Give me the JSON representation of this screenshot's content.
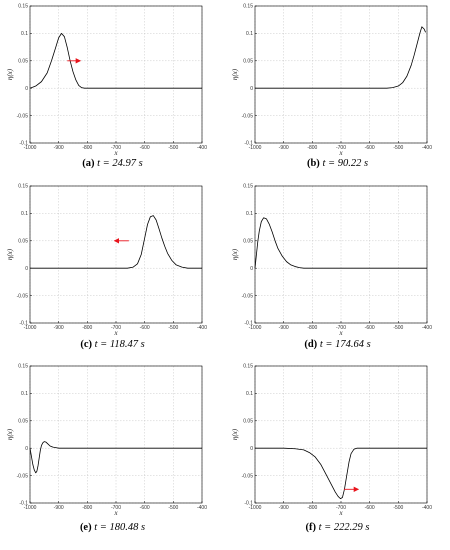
{
  "chart_data": [
    {
      "type": "line",
      "panel": "(a)",
      "time_label": "t = 24.97 s",
      "xlabel": "x",
      "ylabel": "η(x)",
      "xlim": [
        -1000,
        -400
      ],
      "ylim": [
        -0.1,
        0.15
      ],
      "x_ticks": [
        "-1000",
        "-900",
        "-800",
        "-700",
        "-600",
        "-500",
        "-400"
      ],
      "y_ticks": [
        "-0.1",
        "-0.05",
        "0",
        "0.05",
        "0.1",
        "0.15"
      ],
      "grid": true,
      "series": [
        {
          "x": [
            -1000,
            -980,
            -960,
            -940,
            -925,
            -910,
            -900,
            -890,
            -880,
            -870,
            -860,
            -850,
            -840,
            -830,
            -820,
            -810,
            -800,
            -700,
            -600,
            -500,
            -400
          ],
          "y": [
            0,
            0.004,
            0.012,
            0.028,
            0.05,
            0.075,
            0.092,
            0.1,
            0.094,
            0.074,
            0.05,
            0.03,
            0.015,
            0.005,
            0.001,
            0,
            0,
            0,
            0,
            0,
            0
          ]
        }
      ],
      "arrow": {
        "from": [
          -870,
          0.05
        ],
        "to": [
          -825,
          0.05
        ],
        "color": "#e8141c"
      }
    },
    {
      "type": "line",
      "panel": "(b)",
      "time_label": "t = 90.22 s",
      "xlabel": "x",
      "ylabel": "η(x)",
      "xlim": [
        -1000,
        -400
      ],
      "ylim": [
        -0.1,
        0.15
      ],
      "x_ticks": [
        "-1000",
        "-900",
        "-800",
        "-700",
        "-600",
        "-500",
        "-400"
      ],
      "y_ticks": [
        "-0.1",
        "-0.05",
        "0",
        "0.05",
        "0.1",
        "0.15"
      ],
      "grid": true,
      "series": [
        {
          "x": [
            -1000,
            -900,
            -800,
            -700,
            -600,
            -540,
            -520,
            -500,
            -485,
            -470,
            -455,
            -445,
            -435,
            -425,
            -418,
            -410,
            -405
          ],
          "y": [
            0,
            0,
            0,
            0,
            0,
            0,
            0.001,
            0.004,
            0.01,
            0.022,
            0.042,
            0.06,
            0.08,
            0.1,
            0.112,
            0.108,
            0.102
          ]
        }
      ]
    },
    {
      "type": "line",
      "panel": "(c)",
      "time_label": "t = 118.47 s",
      "xlabel": "x",
      "ylabel": "η(x)",
      "xlim": [
        -1000,
        -400
      ],
      "ylim": [
        -0.1,
        0.15
      ],
      "x_ticks": [
        "-1000",
        "-900",
        "-800",
        "-700",
        "-600",
        "-500",
        "-400"
      ],
      "y_ticks": [
        "-0.1",
        "-0.05",
        "0",
        "0.05",
        "0.1",
        "0.15"
      ],
      "grid": true,
      "series": [
        {
          "x": [
            -1000,
            -900,
            -800,
            -700,
            -660,
            -640,
            -625,
            -612,
            -600,
            -590,
            -580,
            -570,
            -560,
            -550,
            -540,
            -530,
            -520,
            -505,
            -490,
            -470,
            -450,
            -400
          ],
          "y": [
            0,
            0,
            0,
            0,
            0,
            0.002,
            0.008,
            0.025,
            0.055,
            0.08,
            0.094,
            0.096,
            0.088,
            0.072,
            0.055,
            0.04,
            0.027,
            0.014,
            0.006,
            0.002,
            0,
            0
          ]
        }
      ],
      "arrow": {
        "from": [
          -655,
          0.05
        ],
        "to": [
          -705,
          0.05
        ],
        "color": "#e8141c"
      }
    },
    {
      "type": "line",
      "panel": "(d)",
      "time_label": "t = 174.64 s",
      "xlabel": "x",
      "ylabel": "η(x)",
      "xlim": [
        -1000,
        -400
      ],
      "ylim": [
        -0.1,
        0.15
      ],
      "x_ticks": [
        "-1000",
        "-900",
        "-800",
        "-700",
        "-600",
        "-500",
        "-400"
      ],
      "y_ticks": [
        "-0.1",
        "-0.05",
        "0",
        "0.05",
        "0.1",
        "0.15"
      ],
      "grid": true,
      "series": [
        {
          "x": [
            -1000,
            -995,
            -990,
            -985,
            -978,
            -970,
            -960,
            -950,
            -940,
            -930,
            -920,
            -905,
            -890,
            -875,
            -860,
            -845,
            -830,
            -800,
            -700,
            -600,
            -500,
            -400
          ],
          "y": [
            0,
            0.025,
            0.05,
            0.068,
            0.085,
            0.092,
            0.09,
            0.08,
            0.066,
            0.05,
            0.036,
            0.022,
            0.012,
            0.006,
            0.003,
            0.001,
            0,
            0,
            0,
            0,
            0,
            0
          ]
        }
      ]
    },
    {
      "type": "line",
      "panel": "(e)",
      "time_label": "t = 180.48 s",
      "xlabel": "x",
      "ylabel": "η(x)",
      "xlim": [
        -1000,
        -400
      ],
      "ylim": [
        -0.1,
        0.15
      ],
      "x_ticks": [
        "-1000",
        "-900",
        "-800",
        "-700",
        "-600",
        "-500",
        "-400"
      ],
      "y_ticks": [
        "-0.1",
        "-0.05",
        "0",
        "0.05",
        "0.1",
        "0.15"
      ],
      "grid": true,
      "series": [
        {
          "x": [
            -1000,
            -995,
            -990,
            -985,
            -980,
            -976,
            -972,
            -968,
            -964,
            -960,
            -955,
            -950,
            -944,
            -938,
            -930,
            -920,
            -910,
            -900,
            -800,
            -700,
            -600,
            -500,
            -400
          ],
          "y": [
            0,
            -0.015,
            -0.03,
            -0.04,
            -0.045,
            -0.042,
            -0.032,
            -0.018,
            -0.004,
            0.005,
            0.01,
            0.012,
            0.011,
            0.008,
            0.004,
            0.002,
            0.001,
            0,
            0,
            0,
            0,
            0,
            0
          ]
        }
      ]
    },
    {
      "type": "line",
      "panel": "(f)",
      "time_label": "t = 222.29 s",
      "xlabel": "x",
      "ylabel": "η(x)",
      "xlim": [
        -1000,
        -400
      ],
      "ylim": [
        -0.1,
        0.15
      ],
      "x_ticks": [
        "-1000",
        "-900",
        "-800",
        "-700",
        "-600",
        "-500",
        "-400"
      ],
      "y_ticks": [
        "-0.1",
        "-0.05",
        "0",
        "0.05",
        "0.1",
        "0.15"
      ],
      "grid": true,
      "series": [
        {
          "x": [
            -1000,
            -900,
            -860,
            -830,
            -810,
            -790,
            -770,
            -750,
            -735,
            -720,
            -710,
            -702,
            -695,
            -688,
            -680,
            -672,
            -665,
            -655,
            -645,
            -600,
            -500,
            -400
          ],
          "y": [
            0,
            0,
            -0.001,
            -0.003,
            -0.008,
            -0.016,
            -0.03,
            -0.05,
            -0.065,
            -0.08,
            -0.088,
            -0.092,
            -0.09,
            -0.075,
            -0.05,
            -0.025,
            -0.01,
            -0.002,
            0,
            0,
            0,
            0
          ]
        }
      ],
      "arrow": {
        "from": [
          -690,
          -0.075
        ],
        "to": [
          -640,
          -0.075
        ],
        "color": "#e8141c"
      }
    }
  ]
}
